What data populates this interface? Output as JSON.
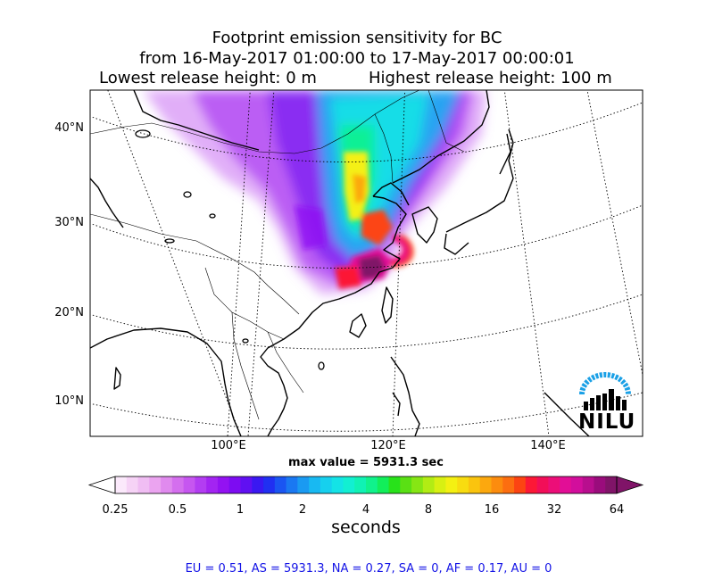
{
  "title": {
    "line1": "Footprint emission sensitivity for BC",
    "line2": "from 16-May-2017 01:00:00 to 17-May-2017 00:00:01",
    "line3_left": "Lowest release height: 0 m",
    "line3_right": "Highest release height: 100 m"
  },
  "map": {
    "lat_labels": [
      "40°N",
      "30°N",
      "20°N",
      "10°N"
    ],
    "lon_labels": [
      "100°E",
      "120°E",
      "140°E"
    ],
    "max_value_text": "max value = 5931.3 sec",
    "logo_text": "NILU"
  },
  "colorbar": {
    "ticks": [
      "0.25",
      "0.5",
      "1",
      "2",
      "4",
      "8",
      "16",
      "32",
      "64"
    ],
    "unit_label": "seconds",
    "colors": [
      "#fbe9fb",
      "#f6d3f6",
      "#f0bdf3",
      "#eba4f0",
      "#e08aee",
      "#d46fee",
      "#c656f0",
      "#b33df2",
      "#a324f2",
      "#9312f2",
      "#7d0cf2",
      "#6010f2",
      "#3a18f2",
      "#2030f2",
      "#1a55f2",
      "#1a78f2",
      "#1a9af2",
      "#18b9f2",
      "#16d0ee",
      "#14e3e6",
      "#12efd2",
      "#10f2b4",
      "#10f28c",
      "#12ee5a",
      "#28e21a",
      "#5ae014",
      "#86e614",
      "#b2ec14",
      "#d8f012",
      "#f4f012",
      "#f8dc10",
      "#fac40e",
      "#fca80e",
      "#fc8c0e",
      "#fc6e10",
      "#fc4412",
      "#fc1836",
      "#f20e58",
      "#ec0e78",
      "#e20e96",
      "#d20e9c",
      "#b80e8e",
      "#9a0c7c",
      "#801468"
    ]
  },
  "stats_text": "EU = 0.51,  AS = 5931.3,  NA = 0.27,  SA = 0,  AF = 0.17,  AU = 0"
}
